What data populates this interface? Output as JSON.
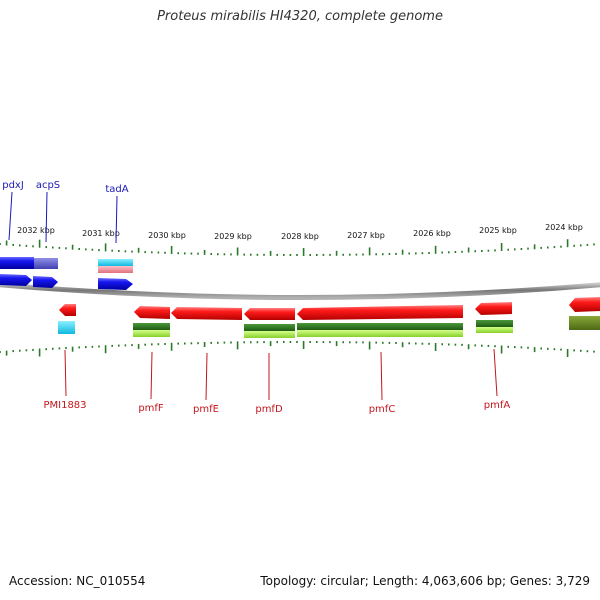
{
  "title": "Proteus mirabilis HI4320, complete genome",
  "footer": {
    "accession": "Accession: NC_010554",
    "stats": "Topology: circular; Length: 4,063,606 bp; Genes: 3,729"
  },
  "scale": {
    "ticks": [
      "2032 kbp",
      "2031 kbp",
      "2030 kbp",
      "2029 kbp",
      "2028 kbp",
      "2027 kbp",
      "2026 kbp",
      "2025 kbp",
      "2024 kbp"
    ]
  },
  "genes_top": [
    {
      "label": "pdxJ",
      "color": "#1a1ab8"
    },
    {
      "label": "acpS",
      "color": "#1a1ab8"
    },
    {
      "label": "tadA",
      "color": "#1a1ab8"
    }
  ],
  "genes_bottom": [
    {
      "label": "PMI1883",
      "color": "#c4161c"
    },
    {
      "label": "pmfF",
      "color": "#c4161c"
    },
    {
      "label": "pmfE",
      "color": "#c4161c"
    },
    {
      "label": "pmfD",
      "color": "#c4161c"
    },
    {
      "label": "pmfC",
      "color": "#c4161c"
    },
    {
      "label": "pmfA",
      "color": "#c4161c"
    }
  ],
  "colors": {
    "forward_cds": "#1010e0",
    "reverse_cds": "#ee1111",
    "backbone": "#8a8a8a",
    "tick": "#2a7a2a",
    "cog_green": "#4aa82a",
    "cog_cyan": "#33d0ee",
    "cog_pink": "#e88c96",
    "cog_purple": "#5555cc"
  }
}
